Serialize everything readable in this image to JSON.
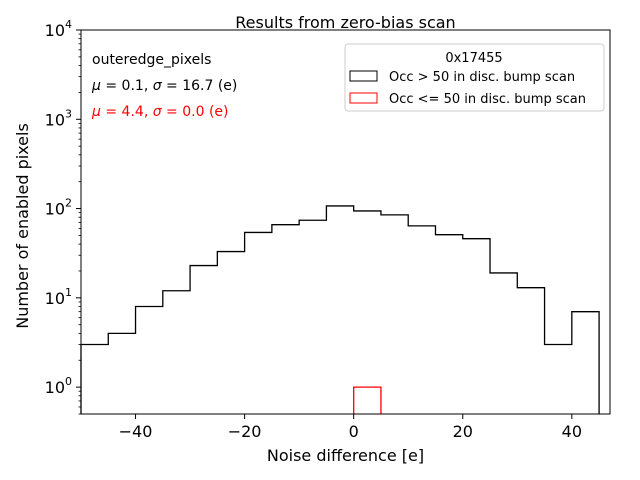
{
  "chart_data": {
    "type": "histogram",
    "title": "Results from zero-bias scan",
    "xlabel": "Noise difference [e]",
    "ylabel": "Number of enabled pixels",
    "xlim": [
      -50,
      47
    ],
    "ylim": [
      0.5,
      10000
    ],
    "yscale": "log",
    "x_ticks": [
      -40,
      -20,
      0,
      20,
      40
    ],
    "x_tick_labels": [
      "−40",
      "−20",
      "0",
      "20",
      "40"
    ],
    "y_ticks": [
      1,
      10,
      100,
      1000,
      10000
    ],
    "y_tick_labels": [
      {
        "base": "10",
        "exp": "0"
      },
      {
        "base": "10",
        "exp": "1"
      },
      {
        "base": "10",
        "exp": "2"
      },
      {
        "base": "10",
        "exp": "3"
      },
      {
        "base": "10",
        "exp": "4"
      }
    ],
    "legend": {
      "title": "0x17455",
      "placement": "top-right"
    },
    "annotations": {
      "name": "outeredge_pixels",
      "stats_black": {
        "mu_sym": "μ",
        "mu": " = 0.1, ",
        "sigma_sym": "σ",
        "sigma": " = 16.7 (e)"
      },
      "stats_red": {
        "mu_sym": "μ",
        "mu": " = 4.4, ",
        "sigma_sym": "σ",
        "sigma": " = 0.0 (e)"
      }
    },
    "series": [
      {
        "name": "Occ > 50 in disc. bump scan",
        "color": "#000000",
        "bin_edges": [
          -50,
          -45,
          -40,
          -35,
          -30,
          -25,
          -20,
          -15,
          -10,
          -5,
          0,
          5,
          10,
          15,
          20,
          25,
          30,
          35,
          40,
          45
        ],
        "counts": [
          3,
          4,
          8,
          12,
          23,
          33,
          54,
          66,
          74,
          107,
          94,
          85,
          64,
          51,
          46,
          19,
          13,
          3,
          7
        ]
      },
      {
        "name": "Occ <= 50 in disc. bump scan",
        "color": "#ff0000",
        "bin_edges": [
          0,
          5
        ],
        "counts": [
          1
        ]
      }
    ]
  }
}
